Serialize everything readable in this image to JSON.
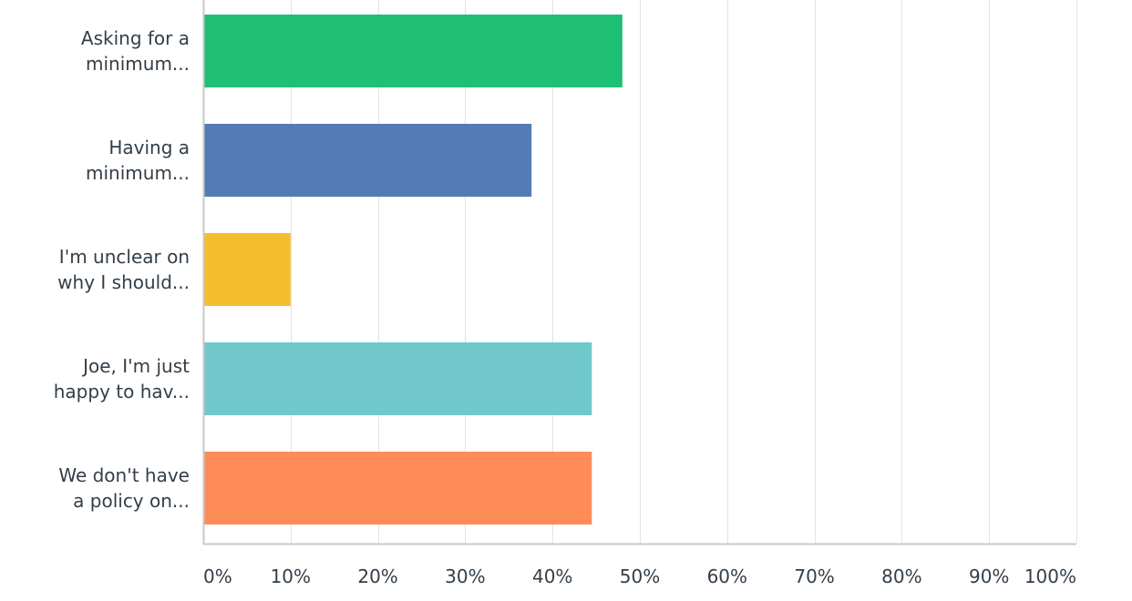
{
  "chart_data": {
    "type": "bar",
    "orientation": "horizontal",
    "categories": [
      [
        "Asking for a",
        "minimum..."
      ],
      [
        "Having a",
        "minimum..."
      ],
      [
        "I'm unclear on",
        "why I should..."
      ],
      [
        "Joe, I'm just",
        "happy to hav..."
      ],
      [
        "We don't have",
        "a policy on..."
      ]
    ],
    "values": [
      48,
      37.6,
      10,
      44.5,
      44.5
    ],
    "colors": [
      "#1fbf74",
      "#527cb3",
      "#f6bd2f",
      "#70c8cb",
      "#fe8c58"
    ],
    "xlim": [
      0,
      100
    ],
    "xticks": [
      0,
      10,
      20,
      30,
      40,
      50,
      60,
      70,
      80,
      90,
      100
    ],
    "xtick_labels": [
      "0%",
      "10%",
      "20%",
      "30%",
      "40%",
      "50%",
      "60%",
      "70%",
      "80%",
      "90%",
      "100%"
    ],
    "grid": true,
    "grid_color": "#e3e3e3",
    "axis_color": "#c8c8c8",
    "text_color": "#333e48"
  }
}
